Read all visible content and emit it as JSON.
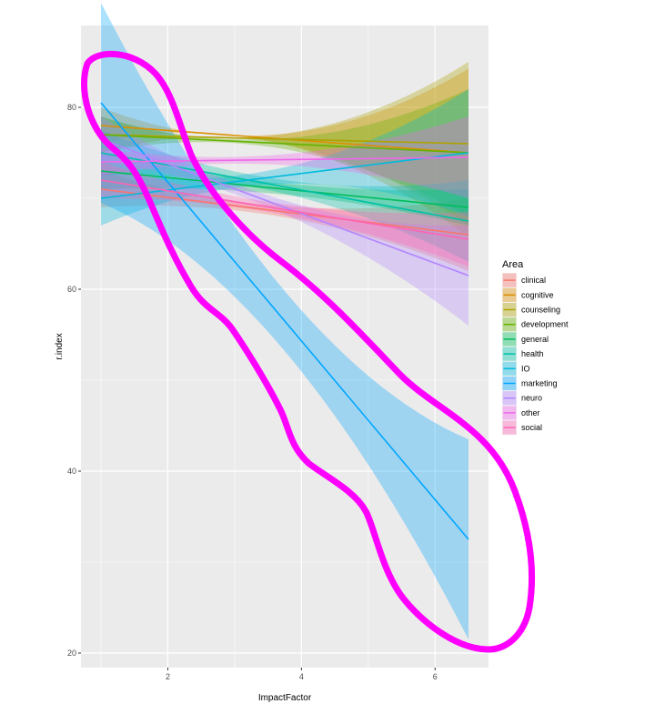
{
  "chart_data": {
    "type": "line",
    "xlabel": "ImpactFactor",
    "ylabel": "r.index",
    "xlim": [
      0.7,
      6.8
    ],
    "ylim": [
      18.4,
      89
    ],
    "x_ticks": [
      2,
      4,
      6
    ],
    "y_ticks": [
      20,
      40,
      60,
      80
    ],
    "grid": true,
    "legend_title": "Area",
    "legend_position": "right",
    "fit_x_range": [
      1.0,
      6.5
    ],
    "series": [
      {
        "name": "clinical",
        "color": "#F8766D",
        "y_start": 71.0,
        "y_end": 66.0,
        "ci_start": [
          69.0,
          73.0
        ],
        "ci_end": [
          62.0,
          70.0
        ]
      },
      {
        "name": "cognitive",
        "color": "#DB8E00",
        "y_start": 78.0,
        "y_end": 75.0,
        "ci_start": [
          76.0,
          80.0
        ],
        "ci_end": [
          66.0,
          84.5
        ]
      },
      {
        "name": "counseling",
        "color": "#AEA200",
        "y_start": 77.0,
        "y_end": 76.0,
        "ci_start": [
          75.0,
          79.0
        ],
        "ci_end": [
          67.0,
          85.0
        ]
      },
      {
        "name": "development",
        "color": "#64B200",
        "y_start": 77.0,
        "y_end": 75.0,
        "ci_start": [
          75.0,
          79.0
        ],
        "ci_end": [
          68.0,
          82.0
        ]
      },
      {
        "name": "general",
        "color": "#00BD5C",
        "y_start": 73.0,
        "y_end": 69.0,
        "ci_start": [
          71.0,
          75.0
        ],
        "ci_end": [
          67.0,
          71.0
        ]
      },
      {
        "name": "health",
        "color": "#00C1A7",
        "y_start": 75.0,
        "y_end": 67.5,
        "ci_start": [
          72.5,
          77.5
        ],
        "ci_end": [
          63.0,
          72.0
        ]
      },
      {
        "name": "IO",
        "color": "#00BADE",
        "y_start": 70.0,
        "y_end": 75.0,
        "ci_start": [
          67.0,
          73.0
        ],
        "ci_end": [
          68.0,
          82.0
        ]
      },
      {
        "name": "marketing",
        "color": "#00A6FF",
        "y_start": 80.5,
        "y_end": 32.5,
        "ci_start": [
          64.0,
          86.0
        ],
        "ci_end": [
          21.5,
          43.5
        ]
      },
      {
        "name": "neuro",
        "color": "#B385FF",
        "y_start": 76.5,
        "y_end": 61.5,
        "ci_start": [
          74.0,
          79.0
        ],
        "ci_end": [
          56.0,
          67.0
        ]
      },
      {
        "name": "other",
        "color": "#EF67EB",
        "y_start": 74.0,
        "y_end": 74.5,
        "ci_start": [
          72.5,
          75.5
        ],
        "ci_end": [
          70.0,
          79.0
        ]
      },
      {
        "name": "social",
        "color": "#FF63B6",
        "y_start": 72.0,
        "y_end": 65.5,
        "ci_start": [
          70.0,
          74.0
        ],
        "ci_end": [
          62.5,
          68.5
        ]
      }
    ],
    "annotation": {
      "shape": "hand-drawn loop",
      "color": "#FF00FF",
      "encircles": "marketing"
    }
  }
}
